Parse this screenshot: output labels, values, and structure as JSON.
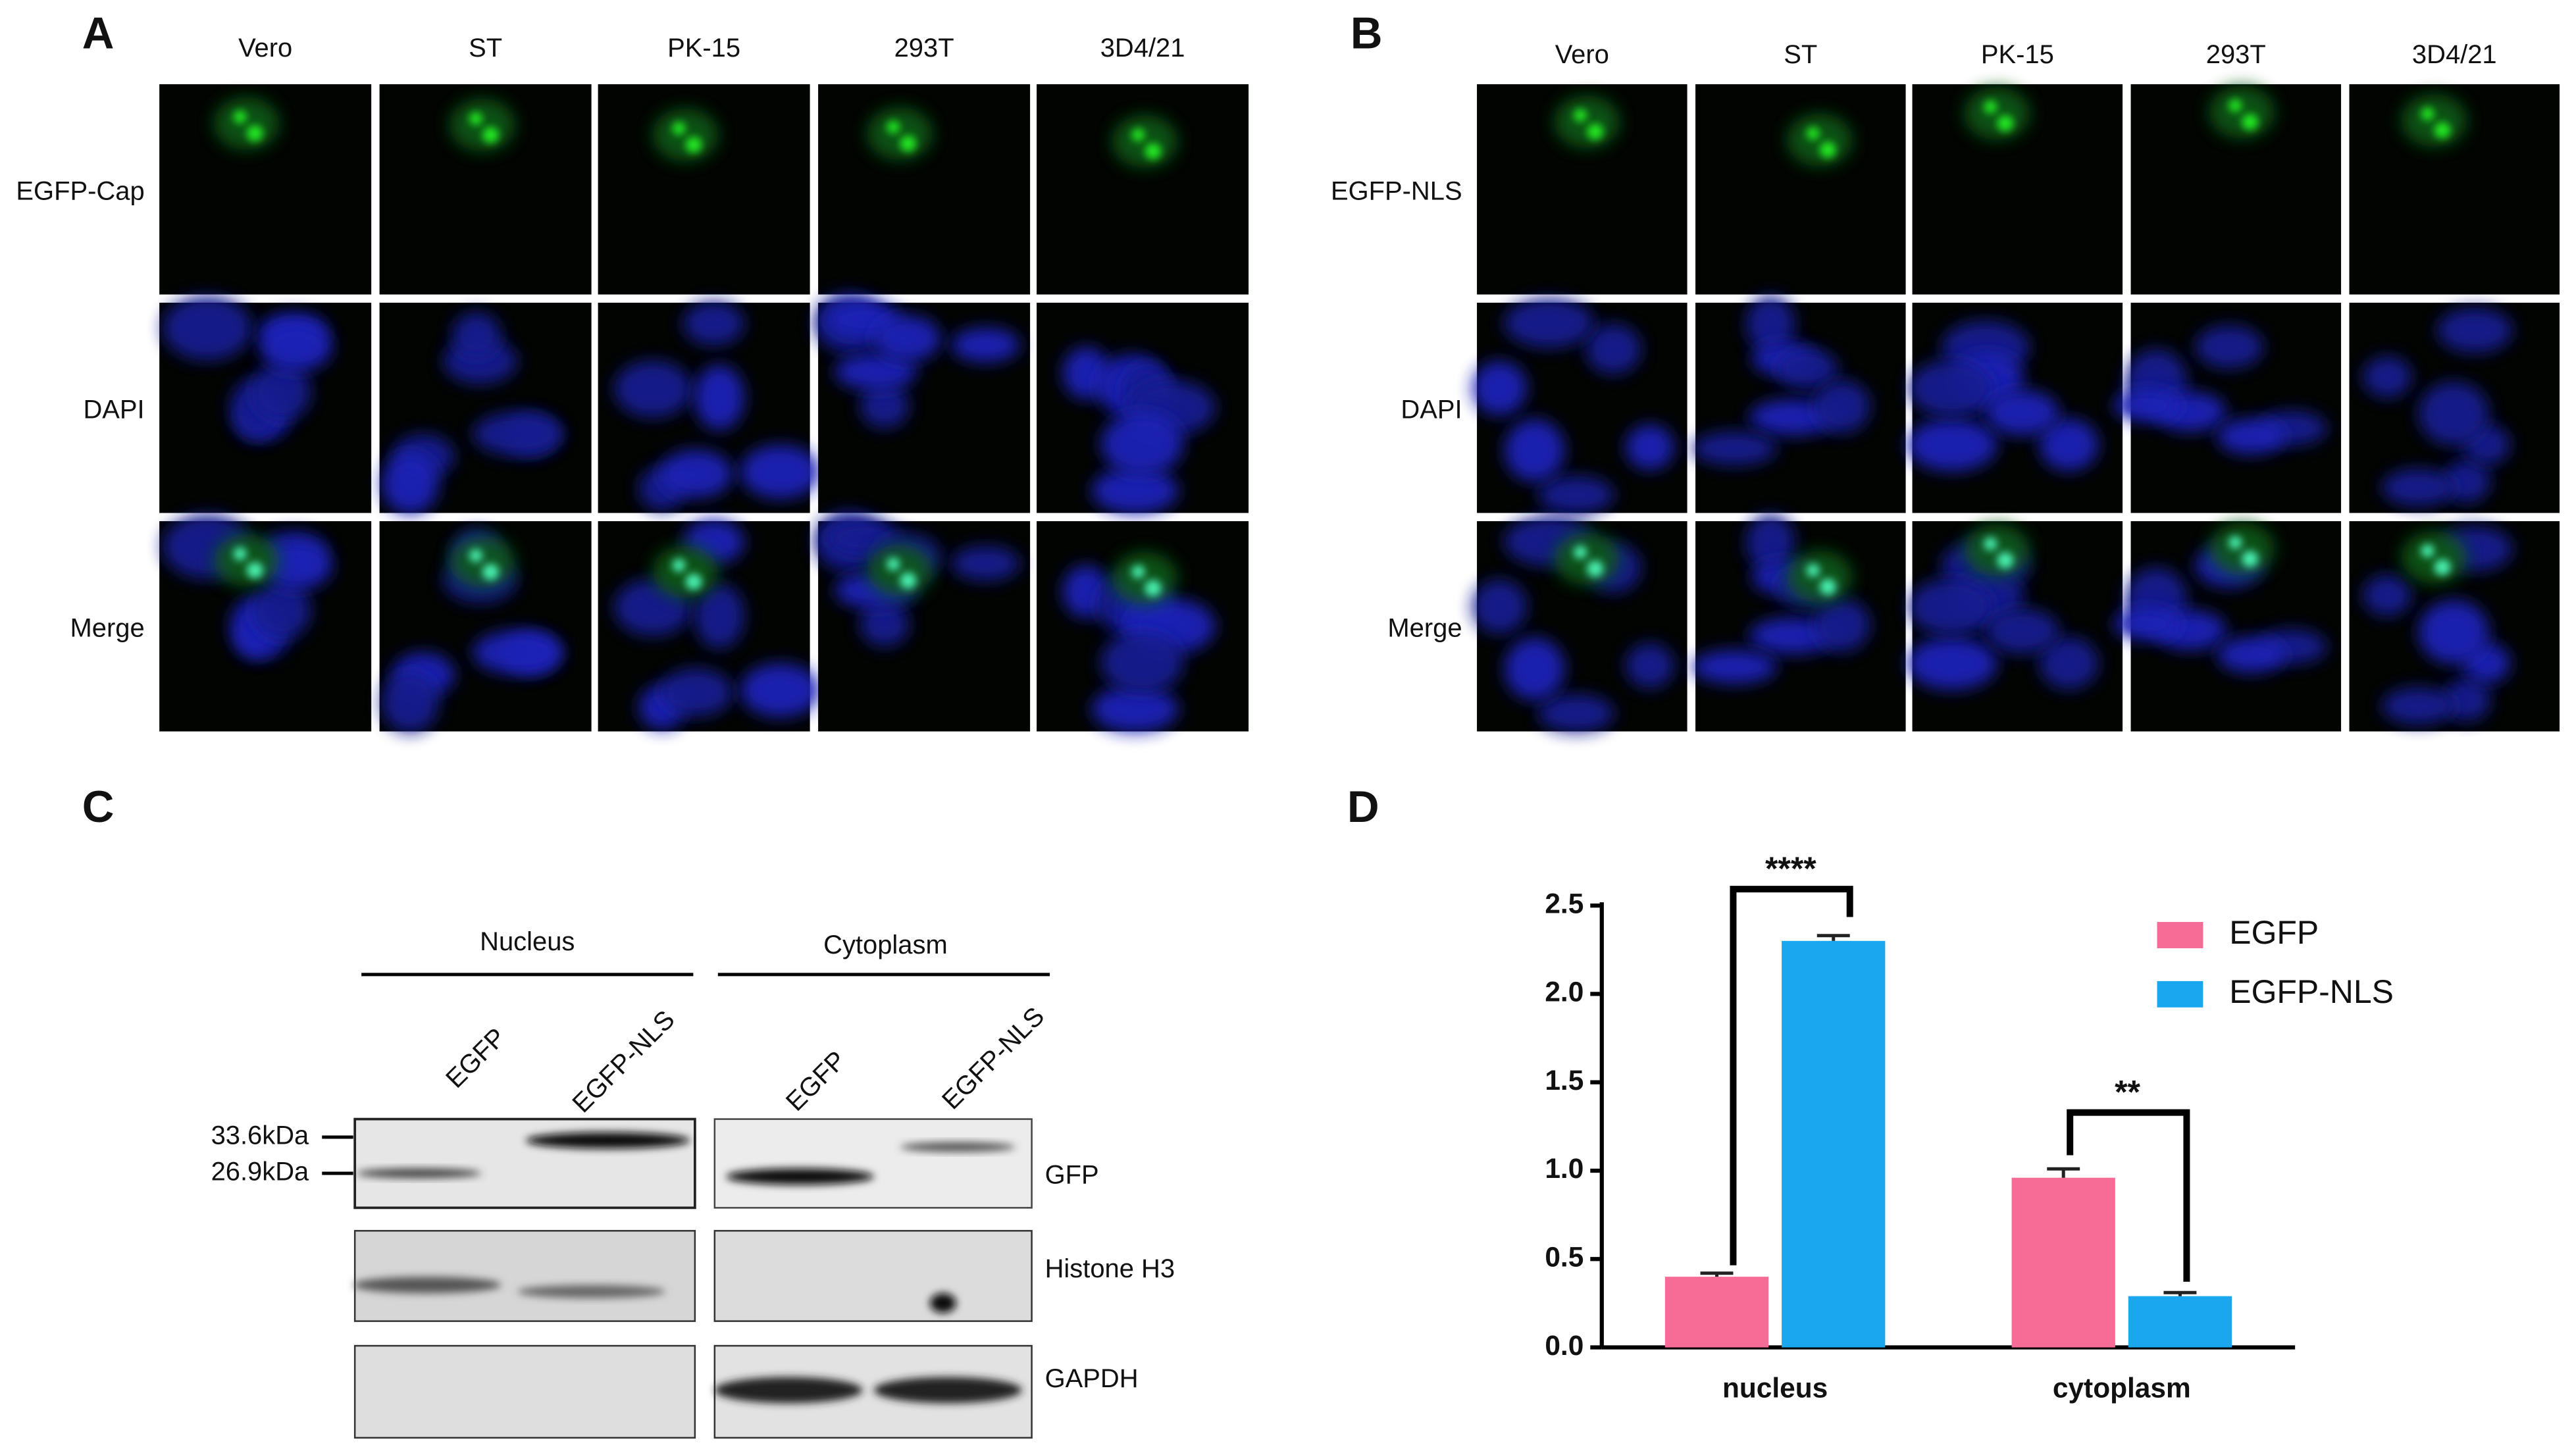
{
  "panels": {
    "A": {
      "label": "A",
      "columns": [
        "Vero",
        "ST",
        "PK-15",
        "293T",
        "3D4/21"
      ],
      "rows": [
        "EGFP-Cap",
        "DAPI",
        "Merge"
      ]
    },
    "B": {
      "label": "B",
      "columns": [
        "Vero",
        "ST",
        "PK-15",
        "293T",
        "3D4/21"
      ],
      "rows": [
        "EGFP-NLS",
        "DAPI",
        "Merge"
      ]
    },
    "C": {
      "label": "C",
      "groups": [
        "Nucleus",
        "Cytoplasm"
      ],
      "lanes": [
        "EGFP",
        "EGFP-NLS",
        "EGFP",
        "EGFP-NLS"
      ],
      "markers": [
        "33.6kDa",
        "26.9kDa"
      ],
      "blots": [
        "GFP",
        "Histone H3",
        "GAPDH"
      ]
    },
    "D": {
      "label": "D"
    }
  },
  "chart_data": {
    "type": "bar",
    "categories": [
      "nucleus",
      "cytoplasm"
    ],
    "series": [
      {
        "name": "EGFP",
        "color": "#f76b97",
        "values": [
          0.4,
          0.96
        ],
        "errors": [
          0.02,
          0.05
        ]
      },
      {
        "name": "EGFP-NLS",
        "color": "#1ba7f0",
        "values": [
          2.3,
          0.29
        ],
        "errors": [
          0.03,
          0.02
        ]
      }
    ],
    "ylim": [
      0,
      2.5
    ],
    "yticks": [
      {
        "value": 0,
        "label": "0.0"
      },
      {
        "value": 0.5,
        "label": "0.5"
      },
      {
        "value": 1,
        "label": "1.0"
      },
      {
        "value": 1.5,
        "label": "1.5"
      },
      {
        "value": 2,
        "label": "2.0"
      },
      {
        "value": 2.5,
        "label": "2.5"
      }
    ],
    "annotations": [
      "****",
      "**"
    ],
    "legend": "upper right"
  }
}
